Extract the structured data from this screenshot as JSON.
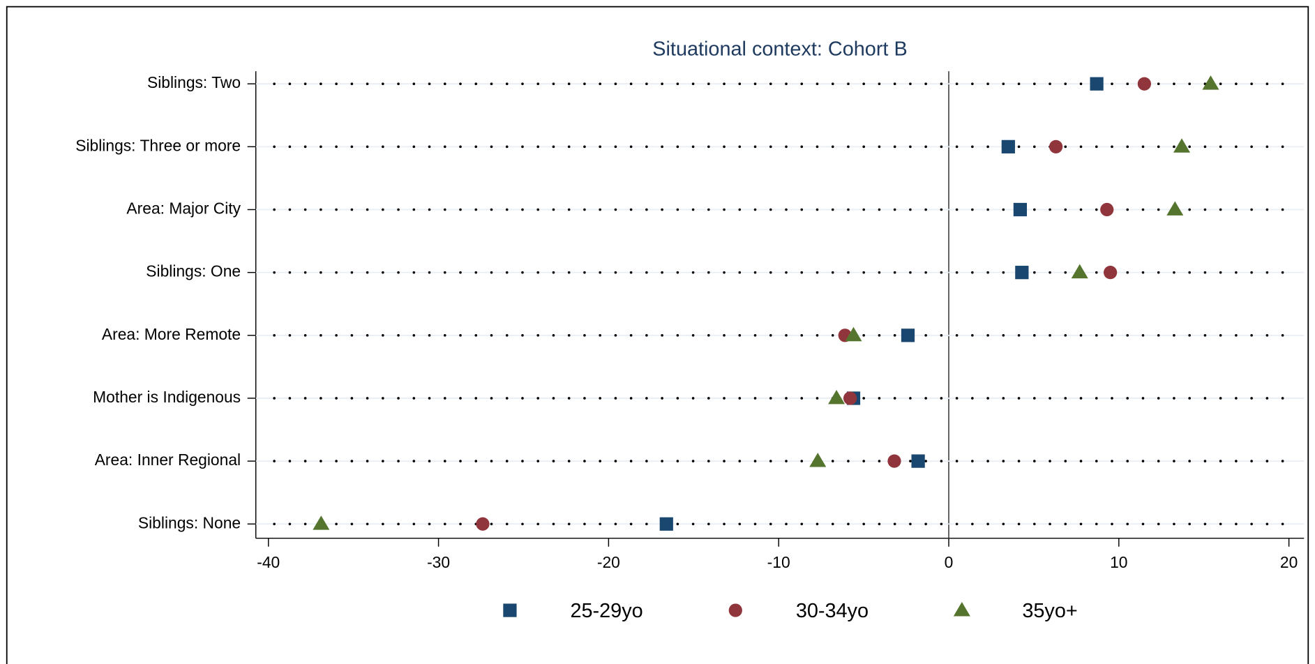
{
  "chart_data": {
    "type": "dot",
    "title": "Situational context: Cohort B",
    "categories": [
      "Siblings: Two",
      "Siblings: Three or more",
      "Area: Major City",
      "Siblings: One",
      "Area: More Remote",
      "Mother is Indigenous",
      "Area: Inner Regional",
      "Siblings: None"
    ],
    "series": [
      {
        "name": "25-29yo",
        "color": "#1a476f",
        "marker": "square",
        "values": [
          8.7,
          3.5,
          4.2,
          4.3,
          -2.4,
          -5.6,
          -1.8,
          -16.6
        ]
      },
      {
        "name": "30-34yo",
        "color": "#90353b",
        "marker": "circle",
        "values": [
          11.5,
          6.3,
          9.3,
          9.5,
          -6.1,
          -5.8,
          -3.2,
          -27.4
        ]
      },
      {
        "name": "35yo+",
        "color": "#55752f",
        "marker": "triangle",
        "values": [
          15.4,
          13.7,
          13.3,
          7.7,
          -5.6,
          -6.6,
          -7.7,
          -36.9
        ]
      }
    ],
    "xlim": [
      -40,
      20
    ],
    "xticks": [
      -40,
      -30,
      -20,
      -10,
      0,
      10,
      20
    ],
    "legend": "bottom"
  }
}
